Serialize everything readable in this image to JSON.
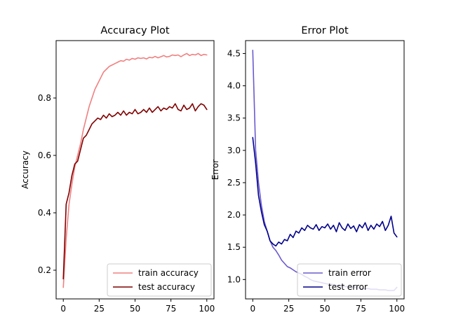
{
  "chart_data": [
    {
      "type": "line",
      "title": "Accuracy Plot",
      "xlabel": "",
      "ylabel": "Accuracy",
      "xlim": [
        -5,
        105
      ],
      "ylim": [
        0.1,
        1.0
      ],
      "xticks": [
        0,
        25,
        50,
        75,
        100
      ],
      "yticks": [
        0.2,
        0.4,
        0.6,
        0.8
      ],
      "grid": false,
      "legend_position": "lower-right",
      "series": [
        {
          "name": "train accuracy",
          "color": "#f08080",
          "x": [
            0,
            2,
            4,
            6,
            8,
            10,
            12,
            14,
            16,
            18,
            20,
            22,
            24,
            26,
            28,
            30,
            32,
            34,
            36,
            38,
            40,
            42,
            44,
            46,
            48,
            50,
            52,
            54,
            56,
            58,
            60,
            62,
            64,
            66,
            68,
            70,
            72,
            74,
            76,
            78,
            80,
            82,
            84,
            86,
            88,
            90,
            92,
            94,
            96,
            98,
            100
          ],
          "values": [
            0.14,
            0.31,
            0.43,
            0.5,
            0.56,
            0.6,
            0.64,
            0.69,
            0.73,
            0.77,
            0.8,
            0.83,
            0.85,
            0.87,
            0.89,
            0.9,
            0.91,
            0.915,
            0.92,
            0.925,
            0.93,
            0.928,
            0.935,
            0.932,
            0.938,
            0.935,
            0.94,
            0.938,
            0.94,
            0.936,
            0.942,
            0.94,
            0.945,
            0.94,
            0.944,
            0.948,
            0.943,
            0.945,
            0.95,
            0.948,
            0.95,
            0.944,
            0.95,
            0.955,
            0.948,
            0.952,
            0.95,
            0.955,
            0.948,
            0.952,
            0.95
          ]
        },
        {
          "name": "test accuracy",
          "color": "#800000",
          "x": [
            0,
            2,
            4,
            6,
            8,
            10,
            12,
            14,
            16,
            18,
            20,
            22,
            24,
            26,
            28,
            30,
            32,
            34,
            36,
            38,
            40,
            42,
            44,
            46,
            48,
            50,
            52,
            54,
            56,
            58,
            60,
            62,
            64,
            66,
            68,
            70,
            72,
            74,
            76,
            78,
            80,
            82,
            84,
            86,
            88,
            90,
            92,
            94,
            96,
            98,
            100
          ],
          "values": [
            0.17,
            0.43,
            0.47,
            0.53,
            0.57,
            0.58,
            0.62,
            0.66,
            0.67,
            0.69,
            0.71,
            0.72,
            0.73,
            0.725,
            0.74,
            0.73,
            0.745,
            0.735,
            0.74,
            0.75,
            0.74,
            0.755,
            0.74,
            0.75,
            0.745,
            0.76,
            0.745,
            0.75,
            0.76,
            0.75,
            0.765,
            0.75,
            0.76,
            0.77,
            0.755,
            0.765,
            0.76,
            0.77,
            0.765,
            0.78,
            0.76,
            0.755,
            0.775,
            0.76,
            0.765,
            0.78,
            0.755,
            0.77,
            0.78,
            0.775,
            0.76
          ]
        }
      ]
    },
    {
      "type": "line",
      "title": "Error Plot",
      "xlabel": "",
      "ylabel": "Error",
      "xlim": [
        -5,
        105
      ],
      "ylim": [
        0.7,
        4.7
      ],
      "xticks": [
        0,
        25,
        50,
        75,
        100
      ],
      "yticks": [
        1.0,
        1.5,
        2.0,
        2.5,
        3.0,
        3.5,
        4.0,
        4.5
      ],
      "grid": false,
      "legend_position": "lower-right",
      "series": [
        {
          "name": "train error",
          "color": "#6a5acd",
          "x": [
            0,
            2,
            4,
            6,
            8,
            10,
            12,
            14,
            16,
            18,
            20,
            22,
            24,
            26,
            28,
            30,
            32,
            34,
            36,
            38,
            40,
            42,
            44,
            46,
            48,
            50,
            52,
            54,
            56,
            58,
            60,
            62,
            64,
            66,
            68,
            70,
            72,
            74,
            76,
            78,
            80,
            82,
            84,
            86,
            88,
            90,
            92,
            94,
            96,
            98,
            100
          ],
          "values": [
            4.55,
            3.0,
            2.5,
            2.15,
            1.9,
            1.75,
            1.6,
            1.5,
            1.45,
            1.38,
            1.3,
            1.25,
            1.2,
            1.18,
            1.15,
            1.12,
            1.1,
            1.08,
            1.05,
            1.03,
            1.0,
            0.98,
            0.97,
            0.96,
            0.95,
            0.94,
            0.93,
            0.93,
            0.92,
            0.91,
            0.9,
            0.9,
            0.89,
            0.89,
            0.88,
            0.88,
            0.87,
            0.87,
            0.86,
            0.86,
            0.86,
            0.85,
            0.85,
            0.85,
            0.84,
            0.84,
            0.84,
            0.83,
            0.83,
            0.83,
            0.88
          ]
        },
        {
          "name": "test error",
          "color": "#00008b",
          "x": [
            0,
            2,
            4,
            6,
            8,
            10,
            12,
            14,
            16,
            18,
            20,
            22,
            24,
            26,
            28,
            30,
            32,
            34,
            36,
            38,
            40,
            42,
            44,
            46,
            48,
            50,
            52,
            54,
            56,
            58,
            60,
            62,
            64,
            66,
            68,
            70,
            72,
            74,
            76,
            78,
            80,
            82,
            84,
            86,
            88,
            90,
            92,
            94,
            96,
            98,
            100
          ],
          "values": [
            3.2,
            2.8,
            2.3,
            2.05,
            1.85,
            1.75,
            1.6,
            1.55,
            1.52,
            1.58,
            1.55,
            1.62,
            1.6,
            1.7,
            1.65,
            1.75,
            1.72,
            1.8,
            1.76,
            1.84,
            1.8,
            1.78,
            1.85,
            1.76,
            1.82,
            1.8,
            1.86,
            1.78,
            1.84,
            1.74,
            1.88,
            1.8,
            1.76,
            1.86,
            1.79,
            1.83,
            1.74,
            1.85,
            1.8,
            1.88,
            1.76,
            1.84,
            1.78,
            1.86,
            1.82,
            1.9,
            1.76,
            1.84,
            1.98,
            1.72,
            1.66
          ]
        }
      ]
    }
  ]
}
